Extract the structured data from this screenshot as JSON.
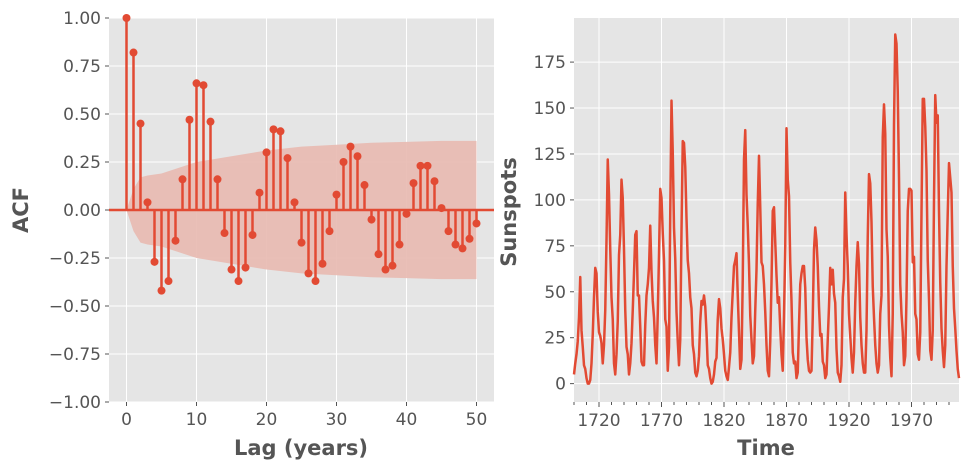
{
  "chart_data": [
    {
      "type": "stem",
      "xlabel": "Lag (years)",
      "ylabel": "ACF",
      "xlim": [
        -2.5,
        52.5
      ],
      "ylim": [
        -1.0,
        1.0
      ],
      "grid": true,
      "x_ticks": [
        0,
        10,
        20,
        30,
        40,
        50
      ],
      "y_ticks": [
        -1.0,
        -0.75,
        -0.5,
        -0.25,
        0.0,
        0.25,
        0.5,
        0.75,
        1.0
      ],
      "y_tick_labels": [
        "−1.00",
        "−0.75",
        "−0.50",
        "−0.25",
        "0.00",
        "0.25",
        "0.50",
        "0.75",
        "1.00"
      ],
      "lags": [
        0,
        1,
        2,
        3,
        4,
        5,
        6,
        7,
        8,
        9,
        10,
        11,
        12,
        13,
        14,
        15,
        16,
        17,
        18,
        19,
        20,
        21,
        22,
        23,
        24,
        25,
        26,
        27,
        28,
        29,
        30,
        31,
        32,
        33,
        34,
        35,
        36,
        37,
        38,
        39,
        40,
        41,
        42,
        43,
        44,
        45,
        46,
        47,
        48,
        49,
        50
      ],
      "values": [
        1.0,
        0.82,
        0.45,
        0.04,
        -0.27,
        -0.42,
        -0.37,
        -0.16,
        0.16,
        0.47,
        0.66,
        0.65,
        0.46,
        0.16,
        -0.12,
        -0.31,
        -0.37,
        -0.3,
        -0.13,
        0.09,
        0.3,
        0.42,
        0.41,
        0.27,
        0.04,
        -0.17,
        -0.33,
        -0.37,
        -0.28,
        -0.11,
        0.08,
        0.25,
        0.33,
        0.28,
        0.13,
        -0.05,
        -0.23,
        -0.31,
        -0.29,
        -0.18,
        -0.02,
        0.14,
        0.23,
        0.23,
        0.15,
        0.01,
        -0.11,
        -0.18,
        -0.2,
        -0.15,
        -0.07
      ],
      "confidence_band": {
        "lags": [
          0,
          1,
          2,
          3,
          5,
          10,
          15,
          20,
          25,
          30,
          35,
          40,
          45,
          50
        ],
        "upper": [
          0.0,
          0.11,
          0.17,
          0.18,
          0.19,
          0.25,
          0.28,
          0.31,
          0.33,
          0.34,
          0.35,
          0.355,
          0.36,
          0.36
        ]
      },
      "colors": {
        "series": "#E24A33",
        "band": "#E8B9B0",
        "background": "#E5E5E5",
        "grid": "#FFFFFF",
        "text": "#555555"
      }
    },
    {
      "type": "line",
      "xlabel": "Time",
      "ylabel": "Sunspots",
      "xlim": [
        1700,
        2008
      ],
      "ylim": [
        -10,
        199
      ],
      "grid": true,
      "x_ticks": [
        1720,
        1770,
        1820,
        1870,
        1920,
        1970
      ],
      "y_ticks": [
        0,
        25,
        50,
        75,
        100,
        125,
        150,
        175
      ],
      "x": [
        1700,
        1701,
        1702,
        1703,
        1704,
        1705,
        1706,
        1707,
        1708,
        1709,
        1710,
        1711,
        1712,
        1713,
        1714,
        1715,
        1716,
        1717,
        1718,
        1719,
        1720,
        1721,
        1722,
        1723,
        1724,
        1725,
        1726,
        1727,
        1728,
        1729,
        1730,
        1731,
        1732,
        1733,
        1734,
        1735,
        1736,
        1737,
        1738,
        1739,
        1740,
        1741,
        1742,
        1743,
        1744,
        1745,
        1746,
        1747,
        1748,
        1749,
        1750,
        1751,
        1752,
        1753,
        1754,
        1755,
        1756,
        1757,
        1758,
        1759,
        1760,
        1761,
        1762,
        1763,
        1764,
        1765,
        1766,
        1767,
        1768,
        1769,
        1770,
        1771,
        1772,
        1773,
        1774,
        1775,
        1776,
        1777,
        1778,
        1779,
        1780,
        1781,
        1782,
        1783,
        1784,
        1785,
        1786,
        1787,
        1788,
        1789,
        1790,
        1791,
        1792,
        1793,
        1794,
        1795,
        1796,
        1797,
        1798,
        1799,
        1800,
        1801,
        1802,
        1803,
        1804,
        1805,
        1806,
        1807,
        1808,
        1809,
        1810,
        1811,
        1812,
        1813,
        1814,
        1815,
        1816,
        1817,
        1818,
        1819,
        1820,
        1821,
        1822,
        1823,
        1824,
        1825,
        1826,
        1827,
        1828,
        1829,
        1830,
        1831,
        1832,
        1833,
        1834,
        1835,
        1836,
        1837,
        1838,
        1839,
        1840,
        1841,
        1842,
        1843,
        1844,
        1845,
        1846,
        1847,
        1848,
        1849,
        1850,
        1851,
        1852,
        1853,
        1854,
        1855,
        1856,
        1857,
        1858,
        1859,
        1860,
        1861,
        1862,
        1863,
        1864,
        1865,
        1866,
        1867,
        1868,
        1869,
        1870,
        1871,
        1872,
        1873,
        1874,
        1875,
        1876,
        1877,
        1878,
        1879,
        1880,
        1881,
        1882,
        1883,
        1884,
        1885,
        1886,
        1887,
        1888,
        1889,
        1890,
        1891,
        1892,
        1893,
        1894,
        1895,
        1896,
        1897,
        1898,
        1899,
        1900,
        1901,
        1902,
        1903,
        1904,
        1905,
        1906,
        1907,
        1908,
        1909,
        1910,
        1911,
        1912,
        1913,
        1914,
        1915,
        1916,
        1917,
        1918,
        1919,
        1920,
        1921,
        1922,
        1923,
        1924,
        1925,
        1926,
        1927,
        1928,
        1929,
        1930,
        1931,
        1932,
        1933,
        1934,
        1935,
        1936,
        1937,
        1938,
        1939,
        1940,
        1941,
        1942,
        1943,
        1944,
        1945,
        1946,
        1947,
        1948,
        1949,
        1950,
        1951,
        1952,
        1953,
        1954,
        1955,
        1956,
        1957,
        1958,
        1959,
        1960,
        1961,
        1962,
        1963,
        1964,
        1965,
        1966,
        1967,
        1968,
        1969,
        1970,
        1971,
        1972,
        1973,
        1974,
        1975,
        1976,
        1977,
        1978,
        1979,
        1980,
        1981,
        1982,
        1983,
        1984,
        1985,
        1986,
        1987,
        1988,
        1989,
        1990,
        1991,
        1992,
        1993,
        1994,
        1995,
        1996,
        1997,
        1998,
        1999,
        2000,
        2001,
        2002,
        2003,
        2004,
        2005,
        2006,
        2007,
        2008
      ],
      "y": [
        5,
        11,
        16,
        23,
        36,
        58,
        29,
        20,
        10,
        8,
        3,
        0,
        0,
        2,
        11,
        27,
        47,
        63,
        60,
        39,
        28,
        26,
        22,
        11,
        21,
        40,
        78,
        122,
        103,
        73,
        47,
        35,
        11,
        5,
        16,
        34,
        70,
        81,
        111,
        101,
        73,
        40,
        20,
        16,
        5,
        11,
        22,
        40,
        60,
        81,
        83,
        48,
        48,
        31,
        12,
        10,
        10,
        32,
        48,
        54,
        63,
        86,
        61,
        45,
        36,
        21,
        11,
        38,
        70,
        106,
        101,
        82,
        67,
        35,
        31,
        7,
        20,
        93,
        154,
        126,
        85,
        68,
        39,
        23,
        10,
        24,
        83,
        132,
        131,
        118,
        90,
        67,
        60,
        47,
        41,
        21,
        16,
        6,
        4,
        7,
        15,
        34,
        45,
        43,
        48,
        42,
        28,
        10,
        8,
        3,
        0,
        1,
        5,
        12,
        14,
        35,
        46,
        41,
        30,
        24,
        16,
        7,
        4,
        2,
        9,
        17,
        36,
        50,
        64,
        67,
        71,
        48,
        28,
        8,
        13,
        57,
        122,
        138,
        103,
        86,
        65,
        37,
        24,
        11,
        15,
        40,
        62,
        98,
        124,
        96,
        66,
        64,
        54,
        39,
        21,
        7,
        4,
        23,
        55,
        94,
        96,
        77,
        59,
        44,
        47,
        30,
        16,
        7,
        37,
        74,
        139,
        111,
        102,
        66,
        45,
        17,
        11,
        12,
        3,
        6,
        32,
        54,
        60,
        64,
        64,
        52,
        25,
        13,
        7,
        6,
        7,
        36,
        73,
        85,
        78,
        64,
        42,
        26,
        27,
        12,
        10,
        3,
        5,
        24,
        42,
        63,
        54,
        62,
        49,
        44,
        19,
        6,
        4,
        1,
        10,
        47,
        57,
        104,
        81,
        64,
        38,
        26,
        14,
        6,
        17,
        44,
        64,
        77,
        65,
        36,
        21,
        11,
        6,
        6,
        29,
        80,
        114,
        109,
        88,
        53,
        36,
        21,
        11,
        6,
        10,
        38,
        48,
        134,
        152,
        136,
        84,
        69,
        32,
        14,
        4,
        38,
        141,
        190,
        185,
        159,
        112,
        54,
        38,
        28,
        10,
        15,
        47,
        94,
        106,
        106,
        105,
        66,
        69,
        38,
        35,
        16,
        13,
        28,
        93,
        155,
        155,
        140,
        116,
        67,
        46,
        18,
        13,
        29,
        100,
        157,
        142,
        146,
        94,
        55,
        30,
        18,
        9,
        21,
        64,
        93,
        120,
        112,
        104,
        64,
        41,
        30,
        18,
        8,
        3
      ],
      "colors": {
        "series": "#E24A33",
        "background": "#E5E5E5",
        "grid": "#FFFFFF",
        "text": "#555555"
      }
    }
  ]
}
